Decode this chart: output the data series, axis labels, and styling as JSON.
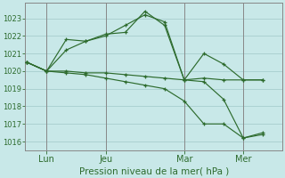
{
  "bg_color": "#c8e8e8",
  "grid_color": "#a0c8c8",
  "line_color": "#2d6b2d",
  "xlabel": "Pression niveau de la mer( hPa )",
  "ylim": [
    1015.5,
    1023.9
  ],
  "yticks": [
    1016,
    1017,
    1018,
    1019,
    1020,
    1021,
    1022,
    1023
  ],
  "xtick_labels": [
    "Lun",
    "Jeu",
    "Mar",
    "Mer"
  ],
  "xtick_positions": [
    1,
    4,
    8,
    11
  ],
  "vline_positions": [
    1,
    4,
    8,
    11
  ],
  "xlim": [
    -0.1,
    13.0
  ],
  "lines_x": [
    [
      0,
      1,
      2,
      3,
      4,
      5,
      6,
      7,
      8,
      9,
      10,
      11,
      12
    ],
    [
      0,
      1,
      2,
      3,
      4,
      5,
      6,
      7,
      8,
      9,
      10,
      11,
      12
    ],
    [
      0,
      1,
      2,
      3,
      4,
      5,
      6,
      7,
      8,
      9,
      10,
      11,
      12
    ],
    [
      0,
      1,
      2,
      3,
      4,
      5,
      6,
      7,
      8,
      9,
      10,
      11,
      12
    ]
  ],
  "lines_y": [
    [
      1020.5,
      1020.0,
      1021.2,
      1021.7,
      1022.1,
      1022.2,
      1023.4,
      1022.6,
      1019.5,
      1021.0,
      1020.4,
      1019.5,
      1019.5
    ],
    [
      1020.5,
      1020.0,
      1021.8,
      1021.7,
      1022.0,
      1022.6,
      1023.2,
      1022.8,
      1019.5,
      1019.6,
      1019.5,
      1019.5,
      1019.5
    ],
    [
      1020.5,
      1020.0,
      1020.0,
      1019.9,
      1019.9,
      1019.8,
      1019.7,
      1019.6,
      1019.5,
      1019.4,
      1018.4,
      1016.2,
      1016.5
    ],
    [
      1020.5,
      1020.0,
      1019.9,
      1019.8,
      1019.6,
      1019.4,
      1019.2,
      1019.0,
      1018.3,
      1017.0,
      1017.0,
      1016.2,
      1016.4
    ]
  ],
  "ytick_fontsize": 6,
  "xtick_fontsize": 7,
  "xlabel_fontsize": 7.5,
  "tick_color": "#2d6b2d",
  "spine_color": "#888888",
  "vline_color": "#888888"
}
